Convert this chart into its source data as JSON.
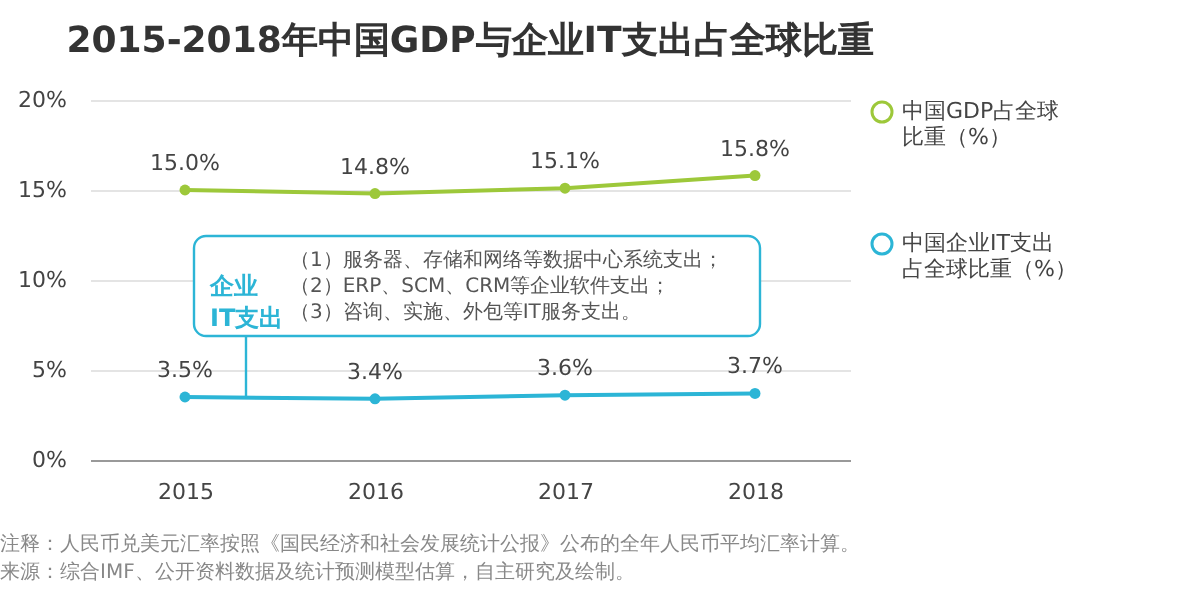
{
  "chart_data": {
    "type": "line",
    "title": "2015-2018年中国GDP与企业IT支出占全球比重",
    "categories": [
      "2015",
      "2016",
      "2017",
      "2018"
    ],
    "series": [
      {
        "name": "中国GDP占全球比重（%）",
        "color": "#9dc83a",
        "values": [
          15.0,
          14.8,
          15.1,
          15.8
        ],
        "value_labels": [
          "15.0%",
          "14.8%",
          "15.1%",
          "15.8%"
        ]
      },
      {
        "name": "中国企业IT支出占全球比重（%）",
        "color": "#2cb5d6",
        "values": [
          3.5,
          3.4,
          3.6,
          3.7
        ],
        "value_labels": [
          "3.5%",
          "3.4%",
          "3.6%",
          "3.7%"
        ]
      }
    ],
    "ylim": [
      0,
      20
    ],
    "yticks": [
      {
        "value": 0,
        "label": "0%"
      },
      {
        "value": 5,
        "label": "5%"
      },
      {
        "value": 10,
        "label": "10%"
      },
      {
        "value": 15,
        "label": "15%"
      },
      {
        "value": 20,
        "label": "20%"
      }
    ],
    "grid": "y",
    "legend": "right",
    "marker": "circle",
    "line_style": "solid",
    "annotations": [
      {
        "text": "企业IT支出",
        "y": 3.45
      },
      "（1）服务器、存储和网络等数据中心系统支出；",
      "（2）ERP、SCM、CRM等企业软件支出；",
      "（3）咨询、实施、外包等IT服务支出。",
      "注释：人民币兑美元汇率按照《国民经济和社会发展统计公报》公布的全年人民币平均汇率计算。",
      "来源：综合IMF、公开资料数据及统计预测模型估算，自主研究及绘制。"
    ]
  }
}
